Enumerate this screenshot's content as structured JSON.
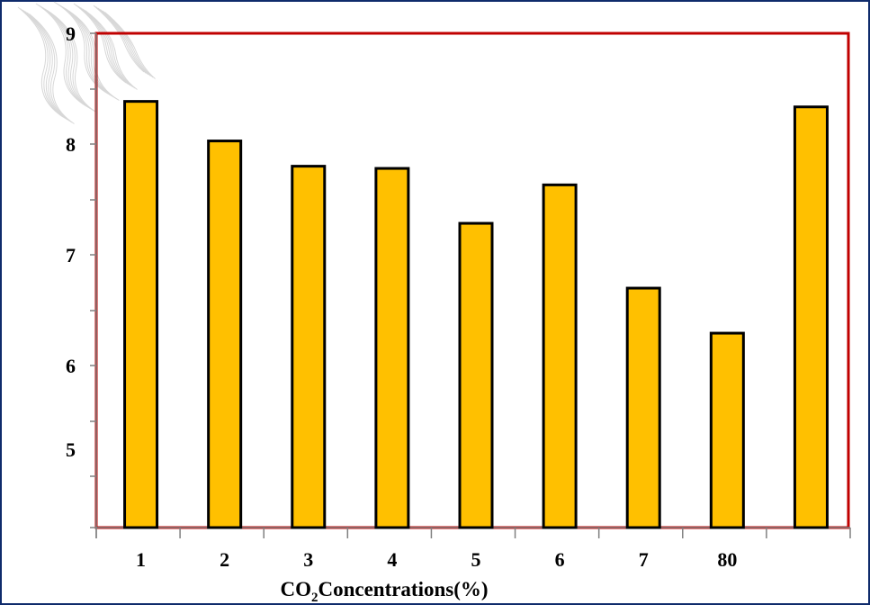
{
  "chart_data": {
    "type": "bar",
    "xlabel_prefix": "CO",
    "xlabel_sub": "2",
    "xlabel_rest": "Concentrations(%)",
    "categories": [
      "1",
      "2",
      "3",
      "4",
      "5",
      "6",
      "7",
      "80",
      ""
    ],
    "values": [
      8.38,
      8.02,
      7.79,
      7.77,
      7.27,
      7.62,
      6.68,
      6.27,
      8.33
    ],
    "y_tick_labels": [
      "9",
      "8",
      "7",
      "6",
      "5",
      ""
    ],
    "ylim": [
      4.5,
      9.0
    ],
    "grid": false,
    "legend": "none"
  },
  "colors": {
    "bar_fill": "#ffc000",
    "bar_stroke": "#000000",
    "plot_border": "#c00000",
    "frame": "#0f2b6b",
    "watermark": "#b8b8b8"
  }
}
